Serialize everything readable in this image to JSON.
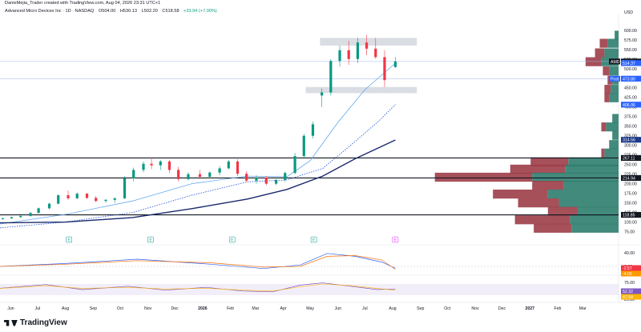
{
  "header": {
    "credit": "DanieMejia_Trader created with TradingView.com, Aug 04, 2026 23:31 UTC+1",
    "symbol_line": "Advanced Micro Devices Inc · 1D · NASDAQ",
    "ohlc": [
      "O504.00",
      "H530.13",
      "L502.20",
      "C518.58"
    ],
    "change": "+33.94 (+7.00%)"
  },
  "branding": {
    "name": "TradingView"
  },
  "chart_data": {
    "type": "candlestick",
    "currency_label": "USD",
    "price_axis": {
      "range": [
        70,
        610
      ],
      "ticks": [
        600,
        575,
        550,
        525,
        500,
        475,
        450,
        425,
        400,
        375,
        350,
        325,
        300,
        275,
        250,
        225,
        200,
        175,
        150,
        125,
        100,
        75
      ]
    },
    "time_axis": {
      "start": "2025-05-20",
      "end": "2027-04-10",
      "labels": [
        "Jun",
        "Jul",
        "Aug",
        "Sep",
        "Oct",
        "Nov",
        "Dec",
        "2026",
        "Feb",
        "Mar",
        "Apr",
        "May",
        "Jun",
        "Jul",
        "Aug",
        "Sep",
        "Oct",
        "Nov",
        "Dec",
        "2027",
        "Feb",
        "Mar"
      ]
    },
    "price_badges": [
      {
        "text": "518.58",
        "price": 518.58,
        "color": "#131722",
        "tag": "AMD"
      },
      {
        "text": "514.37",
        "price": 514.37,
        "color": "#2962ff"
      },
      {
        "text": "473.80",
        "price": 473.8,
        "color": "#2962ff",
        "tag": "Post"
      },
      {
        "text": "406.06",
        "price": 406.06,
        "color": "#2962ff"
      },
      {
        "text": "314.56",
        "price": 314.56,
        "color": "#1e3a8a"
      },
      {
        "text": "267.11",
        "price": 267.11,
        "color": "#131722"
      },
      {
        "text": "214.94",
        "price": 214.94,
        "color": "#131722"
      },
      {
        "text": "118.85",
        "price": 118.85,
        "color": "#131722"
      }
    ],
    "horizontal_levels": [
      267.11,
      214.94,
      118.85,
      473.8,
      518.58
    ],
    "zones": [
      {
        "from_date": "2026-05-12",
        "to_date": "2026-08-28",
        "low": 560,
        "high": 580
      },
      {
        "from_date": "2026-04-26",
        "to_date": "2026-08-28",
        "low": 436,
        "high": 452
      }
    ],
    "candles": [
      [
        "2025-05-23",
        108,
        112,
        106,
        110
      ],
      [
        "2025-06-02",
        110,
        114,
        108,
        113
      ],
      [
        "2025-06-12",
        113,
        118,
        111,
        116
      ],
      [
        "2025-06-23",
        116,
        126,
        114,
        124
      ],
      [
        "2025-07-02",
        124,
        138,
        122,
        136
      ],
      [
        "2025-07-14",
        136,
        150,
        133,
        148
      ],
      [
        "2025-07-24",
        148,
        172,
        146,
        170
      ],
      [
        "2025-08-04",
        170,
        182,
        158,
        162
      ],
      [
        "2025-08-14",
        162,
        178,
        160,
        174
      ],
      [
        "2025-08-25",
        174,
        176,
        160,
        163
      ],
      [
        "2025-09-04",
        163,
        168,
        152,
        155
      ],
      [
        "2025-09-15",
        155,
        160,
        150,
        158
      ],
      [
        "2025-09-25",
        158,
        165,
        150,
        162
      ],
      [
        "2025-10-06",
        162,
        220,
        160,
        214
      ],
      [
        "2025-10-16",
        214,
        242,
        206,
        236
      ],
      [
        "2025-10-27",
        236,
        258,
        230,
        252
      ],
      [
        "2025-11-05",
        252,
        268,
        238,
        248
      ],
      [
        "2025-11-15",
        248,
        262,
        236,
        258
      ],
      [
        "2025-11-25",
        258,
        262,
        228,
        236
      ],
      [
        "2025-12-05",
        236,
        244,
        206,
        212
      ],
      [
        "2025-12-16",
        212,
        230,
        208,
        225
      ],
      [
        "2025-12-29",
        225,
        236,
        212,
        218
      ],
      [
        "2026-01-09",
        218,
        232,
        214,
        229
      ],
      [
        "2026-01-20",
        229,
        246,
        222,
        240
      ],
      [
        "2026-01-30",
        240,
        262,
        238,
        258
      ],
      [
        "2026-02-09",
        258,
        264,
        220,
        226
      ],
      [
        "2026-02-19",
        226,
        232,
        205,
        208
      ],
      [
        "2026-03-02",
        208,
        222,
        200,
        216
      ],
      [
        "2026-03-13",
        216,
        220,
        196,
        200
      ],
      [
        "2026-03-24",
        200,
        212,
        196,
        210
      ],
      [
        "2026-04-03",
        210,
        232,
        205,
        228
      ],
      [
        "2026-04-14",
        228,
        280,
        225,
        272
      ],
      [
        "2026-04-24",
        272,
        330,
        268,
        325
      ],
      [
        "2026-05-04",
        325,
        362,
        318,
        355
      ],
      [
        "2026-05-14",
        430,
        448,
        400,
        438
      ],
      [
        "2026-05-24",
        438,
        525,
        430,
        520
      ],
      [
        "2026-06-03",
        520,
        560,
        505,
        548
      ],
      [
        "2026-06-13",
        548,
        572,
        510,
        525
      ],
      [
        "2026-06-23",
        525,
        580,
        515,
        568
      ],
      [
        "2026-07-03",
        568,
        588,
        535,
        552
      ],
      [
        "2026-07-13",
        552,
        580,
        525,
        530
      ],
      [
        "2026-07-23",
        530,
        548,
        452,
        470
      ],
      [
        "2026-08-04",
        504,
        530,
        502,
        518.58
      ]
    ],
    "moving_averages": [
      {
        "color": "#64a8f0",
        "style": "solid",
        "points": [
          [
            "2025-05-20",
            95
          ],
          [
            "2025-08-01",
            120
          ],
          [
            "2025-10-15",
            155
          ],
          [
            "2025-12-20",
            200
          ],
          [
            "2026-02-20",
            220
          ],
          [
            "2026-04-05",
            218
          ],
          [
            "2026-05-01",
            260
          ],
          [
            "2026-06-01",
            360
          ],
          [
            "2026-07-01",
            445
          ],
          [
            "2026-08-04",
            514
          ]
        ]
      },
      {
        "color": "#1e4fd8",
        "style": "dotted",
        "points": [
          [
            "2025-05-20",
            85
          ],
          [
            "2025-08-01",
            100
          ],
          [
            "2025-10-15",
            125
          ],
          [
            "2025-12-20",
            170
          ],
          [
            "2026-02-20",
            205
          ],
          [
            "2026-04-05",
            210
          ],
          [
            "2026-05-15",
            240
          ],
          [
            "2026-06-15",
            300
          ],
          [
            "2026-07-15",
            360
          ],
          [
            "2026-08-04",
            406
          ]
        ]
      },
      {
        "color": "#1a2a6c",
        "style": "solid",
        "points": [
          [
            "2025-05-20",
            98
          ],
          [
            "2025-08-01",
            100
          ],
          [
            "2025-10-15",
            112
          ],
          [
            "2025-12-20",
            135
          ],
          [
            "2026-02-20",
            160
          ],
          [
            "2026-04-05",
            185
          ],
          [
            "2026-05-15",
            220
          ],
          [
            "2026-06-20",
            265
          ],
          [
            "2026-08-04",
            314
          ]
        ]
      }
    ],
    "volume_profile": [
      {
        "price": 587,
        "buy": 5,
        "sell": 0
      },
      {
        "price": 566,
        "buy": 14,
        "sell": 10
      },
      {
        "price": 541,
        "buy": 18,
        "sell": 12
      },
      {
        "price": 518,
        "buy": 22,
        "sell": 20
      },
      {
        "price": 494,
        "buy": 12,
        "sell": 8
      },
      {
        "price": 470,
        "buy": 8,
        "sell": 6
      },
      {
        "price": 446,
        "buy": 10,
        "sell": 8
      },
      {
        "price": 424,
        "buy": 12,
        "sell": 6
      },
      {
        "price": 370,
        "buy": 8,
        "sell": 0
      },
      {
        "price": 348,
        "buy": 16,
        "sell": 6
      },
      {
        "price": 326,
        "buy": 8,
        "sell": 0
      },
      {
        "price": 302,
        "buy": 12,
        "sell": 0
      },
      {
        "price": 280,
        "buy": 18,
        "sell": 4
      },
      {
        "price": 257,
        "buy": 64,
        "sell": 48
      },
      {
        "price": 238,
        "buy": 68,
        "sell": 70
      },
      {
        "price": 217,
        "buy": 110,
        "sell": 124
      },
      {
        "price": 196,
        "buy": 70,
        "sell": 40
      },
      {
        "price": 173,
        "buy": 90,
        "sell": 70
      },
      {
        "price": 150,
        "buy": 76,
        "sell": 52
      },
      {
        "price": 128,
        "buy": 52,
        "sell": 38
      },
      {
        "price": 106,
        "buy": 62,
        "sell": 70
      },
      {
        "price": 84,
        "buy": 60,
        "sell": 48
      }
    ],
    "earnings_markers": [
      {
        "date": "2025-08-05",
        "label": "E"
      },
      {
        "date": "2025-11-04",
        "label": "E"
      },
      {
        "date": "2026-02-03",
        "label": "E"
      },
      {
        "date": "2026-05-05",
        "label": "E"
      },
      {
        "date": "2026-08-04",
        "label": "E"
      }
    ],
    "macd_panel": {
      "axis_ticks": [
        "40.00",
        "0.00"
      ],
      "badges": [
        {
          "text": "-2.57",
          "color": "#f23645"
        },
        {
          "text": "-4.05",
          "color": "#ff9800"
        }
      ]
    },
    "rsi_panel": {
      "axis_ticks": [
        "75.00",
        "25.00"
      ],
      "band": [
        30,
        70
      ],
      "badges": [
        {
          "text": "52.32",
          "color": "#7e57c2"
        },
        {
          "text": "47.58",
          "color": "#ffb300"
        }
      ]
    }
  }
}
